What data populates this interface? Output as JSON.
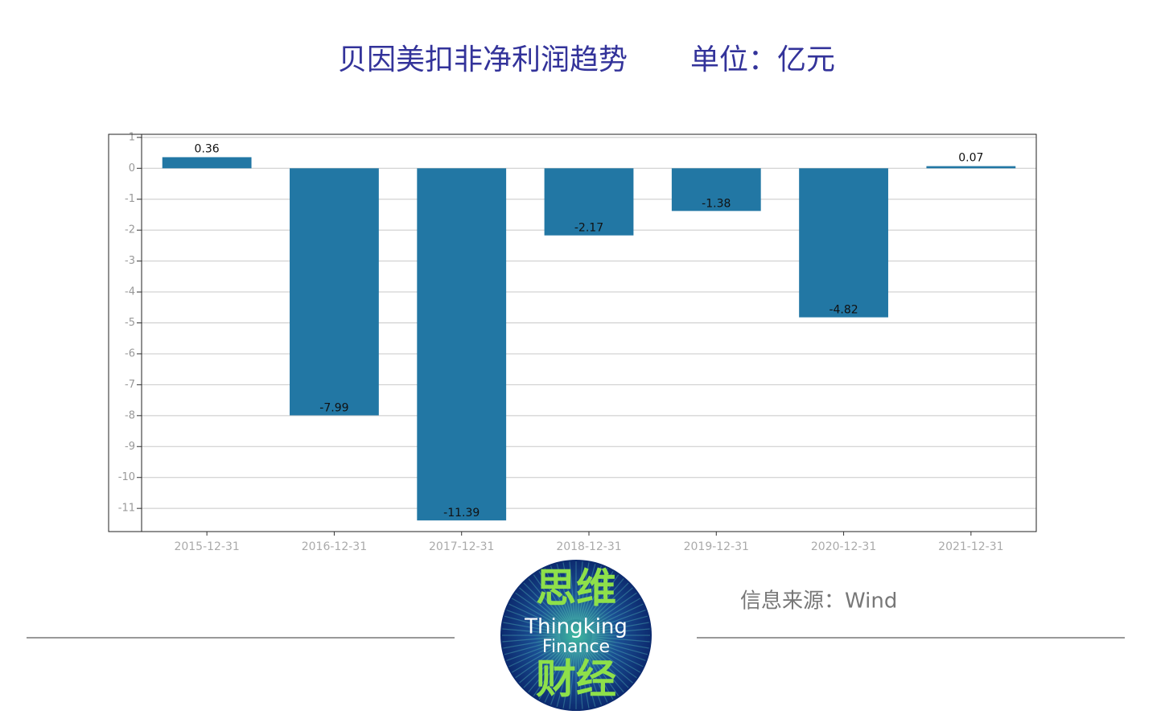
{
  "chart_data": {
    "type": "bar",
    "title": "贝因美扣非净利润趋势",
    "unit": "单位：亿元",
    "categories": [
      "2015-12-31",
      "2016-12-31",
      "2017-12-31",
      "2018-12-31",
      "2019-12-31",
      "2020-12-31",
      "2021-12-31"
    ],
    "values": [
      0.36,
      -7.99,
      -11.39,
      -2.17,
      -1.38,
      -4.82,
      0.07
    ],
    "color": "#2277a4",
    "ylim": [
      -11.75,
      1.1
    ],
    "yticks": [
      1,
      0,
      -1,
      -2,
      -3,
      -4,
      -5,
      -6,
      -7,
      -8,
      -9,
      -10,
      -11
    ],
    "grid": true
  },
  "footer": {
    "logo_top": "思维",
    "logo_line1": "Thingking",
    "logo_line2": "Finance",
    "logo_bottom": "财经",
    "source": "信息来源：Wind"
  }
}
